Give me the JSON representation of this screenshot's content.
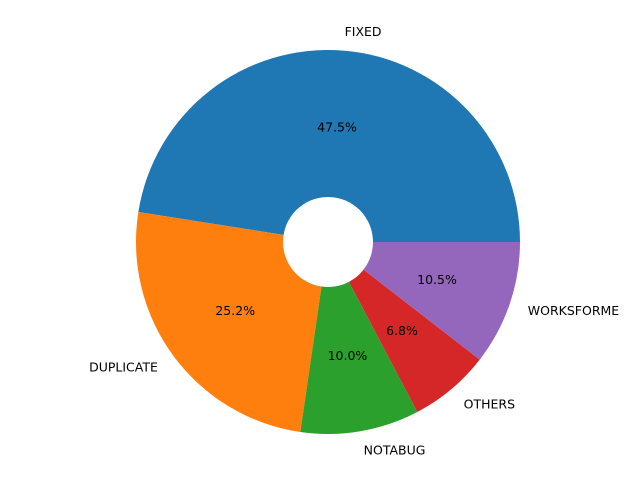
{
  "chart_data": {
    "type": "pie",
    "donut": true,
    "start_angle_deg": 0,
    "direction": "counterclockwise",
    "labels": [
      "FIXED",
      "DUPLICATE",
      "NOTABUG",
      "OTHERS",
      "WORKSFORME"
    ],
    "values": [
      47.5,
      25.2,
      10.0,
      6.8,
      10.5
    ],
    "percent_labels": [
      "47.5%",
      "25.2%",
      "10.0%",
      "6.8%",
      "10.5%"
    ],
    "colors": [
      "#1f77b4",
      "#ff7f0e",
      "#2ca02c",
      "#d62728",
      "#9467bd"
    ],
    "title": "",
    "legend": false
  }
}
